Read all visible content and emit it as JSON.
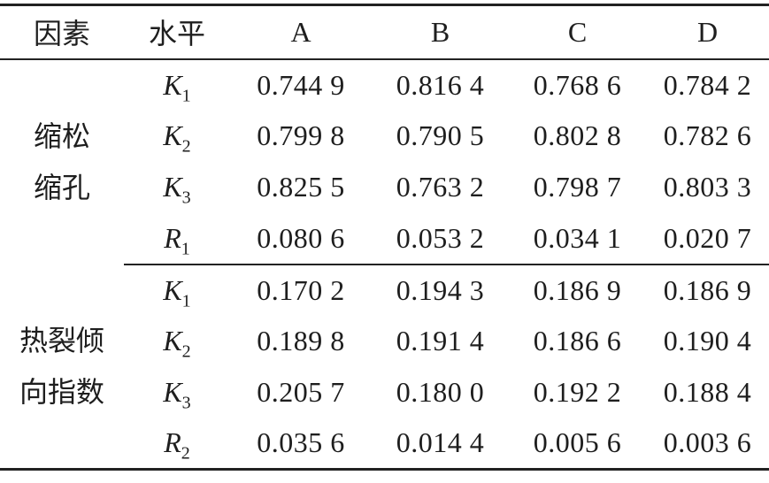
{
  "table": {
    "header": {
      "factor": "因素",
      "level": "水平",
      "cols": [
        "A",
        "B",
        "C",
        "D"
      ]
    },
    "groups": [
      {
        "factor_line1": "缩松",
        "factor_line2": "缩孔",
        "rows": [
          {
            "base": "K",
            "sub": "1",
            "values": [
              "0.744 9",
              "0.816 4",
              "0.768 6",
              "0.784 2"
            ]
          },
          {
            "base": "K",
            "sub": "2",
            "values": [
              "0.799 8",
              "0.790 5",
              "0.802 8",
              "0.782 6"
            ]
          },
          {
            "base": "K",
            "sub": "3",
            "values": [
              "0.825 5",
              "0.763 2",
              "0.798 7",
              "0.803 3"
            ]
          },
          {
            "base": "R",
            "sub": "1",
            "values": [
              "0.080 6",
              "0.053 2",
              "0.034 1",
              "0.020 7"
            ]
          }
        ]
      },
      {
        "factor_line1": "热裂倾",
        "factor_line2": "向指数",
        "rows": [
          {
            "base": "K",
            "sub": "1",
            "values": [
              "0.170 2",
              "0.194 3",
              "0.186 9",
              "0.186 9"
            ]
          },
          {
            "base": "K",
            "sub": "2",
            "values": [
              "0.189 8",
              "0.191 4",
              "0.186 6",
              "0.190 4"
            ]
          },
          {
            "base": "K",
            "sub": "3",
            "values": [
              "0.205 7",
              "0.180 0",
              "0.192 2",
              "0.188 4"
            ]
          },
          {
            "base": "R",
            "sub": "2",
            "values": [
              "0.035 6",
              "0.014 4",
              "0.005 6",
              "0.003 6"
            ]
          }
        ]
      }
    ]
  },
  "chart_data": {
    "type": "table",
    "title": "",
    "columns": [
      "因素",
      "水平",
      "A",
      "B",
      "C",
      "D"
    ],
    "rows": [
      [
        "缩松缩孔",
        "K1",
        0.7449,
        0.8164,
        0.7686,
        0.7842
      ],
      [
        "缩松缩孔",
        "K2",
        0.7998,
        0.7905,
        0.8028,
        0.7826
      ],
      [
        "缩松缩孔",
        "K3",
        0.8255,
        0.7632,
        0.7987,
        0.8033
      ],
      [
        "缩松缩孔",
        "R1",
        0.0806,
        0.0532,
        0.0341,
        0.0207
      ],
      [
        "热裂倾向指数",
        "K1",
        0.1702,
        0.1943,
        0.1869,
        0.1869
      ],
      [
        "热裂倾向指数",
        "K2",
        0.1898,
        0.1914,
        0.1866,
        0.1904
      ],
      [
        "热裂倾向指数",
        "K3",
        0.2057,
        0.18,
        0.1922,
        0.1884
      ],
      [
        "热裂倾向指数",
        "R2",
        0.0356,
        0.0144,
        0.0056,
        0.0036
      ]
    ]
  },
  "colors": {
    "background": "#ffffff",
    "text": "#1e1e1e",
    "rule": "#222222"
  }
}
